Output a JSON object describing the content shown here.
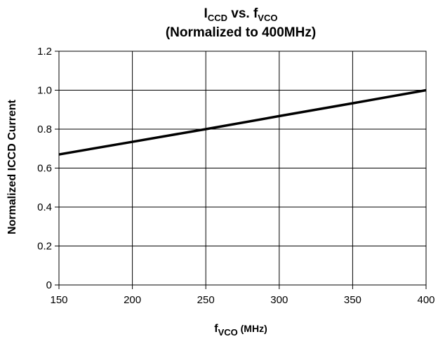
{
  "chart_data": {
    "type": "line",
    "title": {
      "line1": {
        "main": "I",
        "sub": "CCD",
        "mid": " vs. f",
        "sub2": "VCO"
      },
      "line2": "(Normalized to 400MHz)"
    },
    "xlabel": {
      "main": "f",
      "sub": "VCO",
      "rest": " (MHz)"
    },
    "ylabel": "Normalized ICCD Current",
    "xlim": [
      150,
      400
    ],
    "ylim": [
      0,
      1.2
    ],
    "x_ticks": [
      "150",
      "200",
      "250",
      "300",
      "350",
      "400"
    ],
    "y_ticks": [
      "0",
      "0.2",
      "0.4",
      "0.6",
      "0.8",
      "1.0",
      "1.2"
    ],
    "grid": true,
    "series": [
      {
        "x": [
          150,
          200,
          250,
          300,
          350,
          400
        ],
        "y": [
          0.67,
          0.735,
          0.8,
          0.867,
          0.933,
          1.0
        ]
      }
    ],
    "line_color": "#000000"
  }
}
